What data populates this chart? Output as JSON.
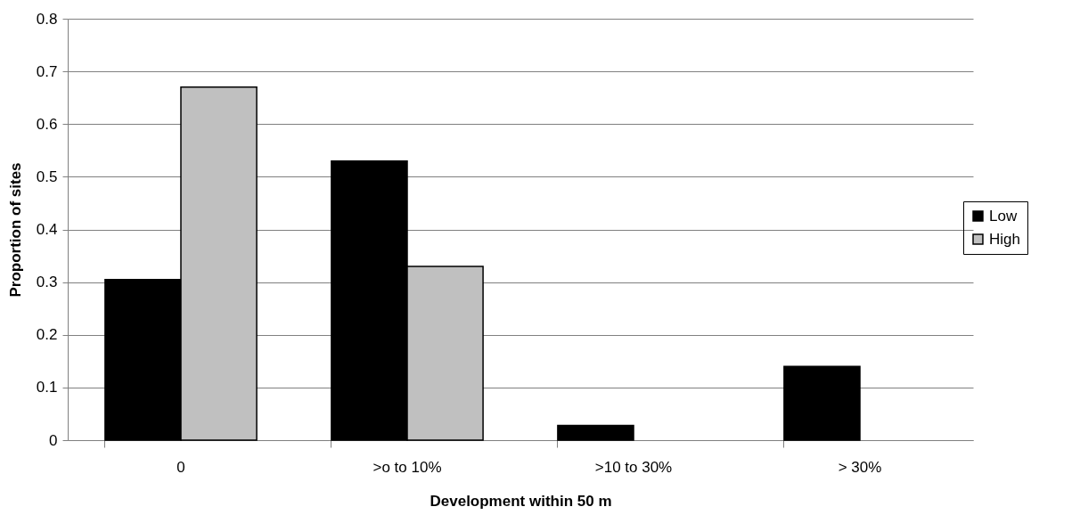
{
  "chart_data": {
    "type": "bar",
    "xlabel": "Development within 50 m",
    "ylabel": "Proportion of sites",
    "categories": [
      "0",
      ">o to 10%",
      ">10 to 30%",
      "> 30%"
    ],
    "series": [
      {
        "name": "Low",
        "color": "#000000",
        "values": [
          0.305,
          0.53,
          0.028,
          0.14
        ]
      },
      {
        "name": "High",
        "color": "#c0c0c0",
        "values": [
          0.67,
          0.33,
          0,
          0
        ]
      }
    ],
    "ylim": [
      0,
      0.8
    ],
    "yticks": [
      0,
      0.1,
      0.2,
      0.3,
      0.4,
      0.5,
      0.6,
      0.7,
      0.8
    ],
    "grid": "y",
    "legend": "right"
  }
}
